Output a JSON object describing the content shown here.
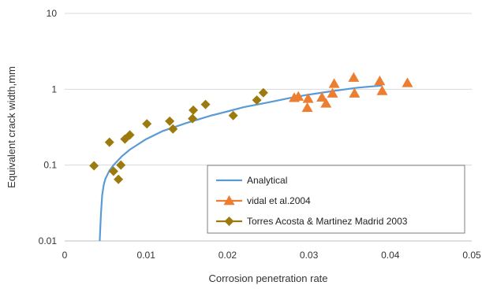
{
  "chart_data": {
    "type": "scatter",
    "xlabel": "Corrosion penetration rate",
    "ylabel": "Equivalent crack width,mm",
    "x_scale": "linear",
    "y_scale": "log",
    "xlim": [
      0,
      0.05
    ],
    "ylim": [
      0.01,
      10
    ],
    "x_ticks": [
      0,
      0.01,
      0.02,
      0.03,
      0.04,
      0.05
    ],
    "x_tick_labels": [
      "0",
      "0.01",
      "0.02",
      "0.03",
      "0.04",
      "0.05"
    ],
    "y_ticks": [
      0.01,
      0.1,
      1,
      10
    ],
    "y_tick_labels": [
      "0.01",
      "0.1",
      "1",
      "10"
    ],
    "grid": {
      "horizontal": true,
      "vertical": false
    },
    "legend_position": "bottom-right",
    "series": [
      {
        "name": "Analytical",
        "kind": "line",
        "color": "#5b9bd5",
        "x": [
          0.0043,
          0.00445,
          0.0046,
          0.0048,
          0.005,
          0.0055,
          0.006,
          0.007,
          0.008,
          0.01,
          0.012,
          0.015,
          0.018,
          0.02,
          0.022,
          0.025,
          0.028,
          0.03,
          0.033,
          0.036,
          0.039
        ],
        "y": [
          0.01,
          0.022,
          0.04,
          0.055,
          0.066,
          0.085,
          0.1,
          0.13,
          0.16,
          0.22,
          0.28,
          0.36,
          0.45,
          0.51,
          0.58,
          0.67,
          0.78,
          0.85,
          0.95,
          1.05,
          1.12
        ]
      },
      {
        "name": "vidal et al.2004",
        "kind": "markers",
        "marker": "triangle",
        "color": "#ed7d31",
        "x": [
          0.0282,
          0.0287,
          0.0298,
          0.0299,
          0.0316,
          0.0321,
          0.0329,
          0.0331,
          0.0355,
          0.0356,
          0.0387,
          0.039,
          0.0421
        ],
        "y": [
          0.77,
          0.8,
          0.57,
          0.75,
          0.78,
          0.65,
          0.88,
          1.18,
          1.42,
          0.88,
          1.28,
          0.95,
          1.21
        ]
      },
      {
        "name": "Torres Acosta & Martinez Madrid 2003",
        "kind": "markers",
        "marker": "diamond",
        "color": "#9c7a0e",
        "x": [
          0.0036,
          0.0055,
          0.006,
          0.0066,
          0.0069,
          0.0074,
          0.008,
          0.0101,
          0.0129,
          0.0133,
          0.0157,
          0.0158,
          0.0173,
          0.0207,
          0.0236,
          0.0244
        ],
        "y": [
          0.098,
          0.2,
          0.083,
          0.065,
          0.1,
          0.22,
          0.25,
          0.35,
          0.38,
          0.3,
          0.41,
          0.53,
          0.63,
          0.45,
          0.72,
          0.9
        ]
      }
    ]
  }
}
